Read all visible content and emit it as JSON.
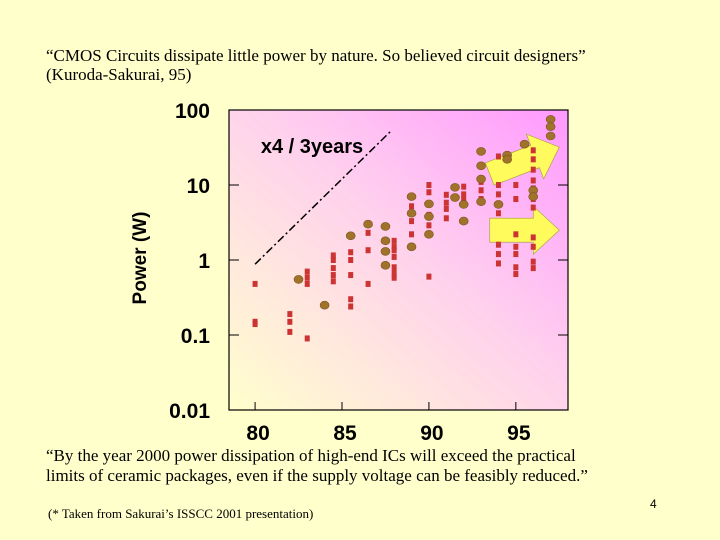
{
  "quote_top": {
    "line1": "“CMOS Circuits dissipate little power by nature. So believed circuit designers”",
    "line2": "(Kuroda-Sakurai, 95)"
  },
  "quote_bottom": {
    "line1": "“By the year 2000 power dissipation of high-end ICs will exceed the practical",
    "line2": "limits of ceramic packages, even if the supply voltage can be feasibly reduced.”"
  },
  "footnote": "(* Taken from Sakurai’s ISSCC 2001 presentation)",
  "page_number": "4",
  "colors": {
    "square": "#CC3333",
    "circle": "#A0722A",
    "arrow": "#FFFF55",
    "background": "#FFFFCC",
    "gradient": "#FF99FF"
  },
  "chart_data": {
    "type": "scatter",
    "title": "",
    "xlabel": "",
    "ylabel": "Power (W)",
    "y_scale": "log",
    "xlim": [
      78.5,
      98
    ],
    "ylim": [
      0.01,
      100
    ],
    "x_ticks": [
      80,
      85,
      90,
      95
    ],
    "x_tick_labels": [
      "80",
      "85",
      "90",
      "95"
    ],
    "y_ticks": [
      0.01,
      0.1,
      1,
      10,
      100
    ],
    "y_tick_labels": [
      "0.01",
      "0.1",
      "1",
      "10",
      "100"
    ],
    "trend_label": "x4 / 3years",
    "trend_line": {
      "x": [
        80,
        87.8
      ],
      "y": [
        0.88,
        52
      ]
    },
    "series": [
      {
        "name": "squares",
        "marker": "square",
        "points": [
          [
            80,
            0.48
          ],
          [
            80,
            0.15
          ],
          [
            80,
            0.14
          ],
          [
            82,
            0.19
          ],
          [
            82,
            0.15
          ],
          [
            82,
            0.11
          ],
          [
            83,
            0.09
          ],
          [
            83,
            0.7
          ],
          [
            83,
            0.58
          ],
          [
            83,
            0.48
          ],
          [
            84.5,
            1.15
          ],
          [
            84.5,
            1.0
          ],
          [
            84.5,
            0.78
          ],
          [
            84.5,
            0.63
          ],
          [
            84.5,
            0.52
          ],
          [
            85.5,
            1.27
          ],
          [
            85.5,
            1.0
          ],
          [
            85.5,
            0.63
          ],
          [
            85.5,
            0.3
          ],
          [
            85.5,
            0.24
          ],
          [
            86.5,
            2.3
          ],
          [
            86.5,
            1.35
          ],
          [
            86.5,
            0.48
          ],
          [
            88,
            1.8
          ],
          [
            88,
            1.5
          ],
          [
            88,
            1.35
          ],
          [
            88,
            1.1
          ],
          [
            88,
            0.8
          ],
          [
            88,
            0.67
          ],
          [
            88,
            0.58
          ],
          [
            89,
            5.2
          ],
          [
            89,
            3.3
          ],
          [
            89,
            2.2
          ],
          [
            90,
            10
          ],
          [
            90,
            8
          ],
          [
            90,
            4
          ],
          [
            90,
            2.9
          ],
          [
            90,
            2.2
          ],
          [
            90,
            0.6
          ],
          [
            91,
            7.4
          ],
          [
            91,
            5.8
          ],
          [
            91,
            4.8
          ],
          [
            91,
            3.6
          ],
          [
            92,
            9.5
          ],
          [
            92,
            7.5
          ],
          [
            92,
            6.5
          ],
          [
            92,
            5.8
          ],
          [
            93,
            11
          ],
          [
            93,
            8.5
          ],
          [
            93,
            6.5
          ],
          [
            94,
            24
          ],
          [
            94,
            10
          ],
          [
            94,
            7.5
          ],
          [
            94,
            5.6
          ],
          [
            94,
            4.2
          ],
          [
            94,
            1.6
          ],
          [
            94,
            1.2
          ],
          [
            94,
            0.9
          ],
          [
            95,
            10
          ],
          [
            95,
            6.5
          ],
          [
            95,
            2.2
          ],
          [
            95,
            1.5
          ],
          [
            95,
            1.2
          ],
          [
            95,
            0.8
          ],
          [
            95,
            0.65
          ],
          [
            96,
            29
          ],
          [
            96,
            22
          ],
          [
            96,
            16
          ],
          [
            96,
            11.5
          ],
          [
            96,
            9
          ],
          [
            96,
            6.5
          ],
          [
            96,
            5
          ],
          [
            96,
            2
          ],
          [
            96,
            1.5
          ],
          [
            96,
            0.95
          ],
          [
            96,
            0.78
          ]
        ]
      },
      {
        "name": "circles",
        "marker": "circle",
        "points": [
          [
            82.5,
            0.55
          ],
          [
            84,
            0.25
          ],
          [
            85.5,
            2.1
          ],
          [
            86.5,
            3.0
          ],
          [
            87.5,
            2.8
          ],
          [
            87.5,
            1.8
          ],
          [
            87.5,
            1.3
          ],
          [
            87.5,
            0.85
          ],
          [
            89,
            7
          ],
          [
            89,
            4.2
          ],
          [
            89,
            1.5
          ],
          [
            90,
            5.6
          ],
          [
            90,
            3.8
          ],
          [
            90,
            2.2
          ],
          [
            91.5,
            9.3
          ],
          [
            91.5,
            6.8
          ],
          [
            92,
            5.5
          ],
          [
            92,
            3.3
          ],
          [
            93,
            28
          ],
          [
            93,
            18
          ],
          [
            93,
            12
          ],
          [
            93,
            6
          ],
          [
            94,
            5.5
          ],
          [
            94.5,
            25
          ],
          [
            94.5,
            22
          ],
          [
            95.5,
            35
          ],
          [
            96,
            8.5
          ],
          [
            96,
            7
          ],
          [
            97,
            75
          ],
          [
            97,
            60
          ],
          [
            97,
            45
          ]
        ]
      }
    ],
    "annotations": [
      {
        "type": "arrow",
        "from": [
          93.5,
          14
        ],
        "to": [
          97.5,
          32
        ]
      },
      {
        "type": "arrow",
        "from": [
          93.5,
          2.5
        ],
        "to": [
          97.5,
          2.5
        ]
      }
    ]
  }
}
